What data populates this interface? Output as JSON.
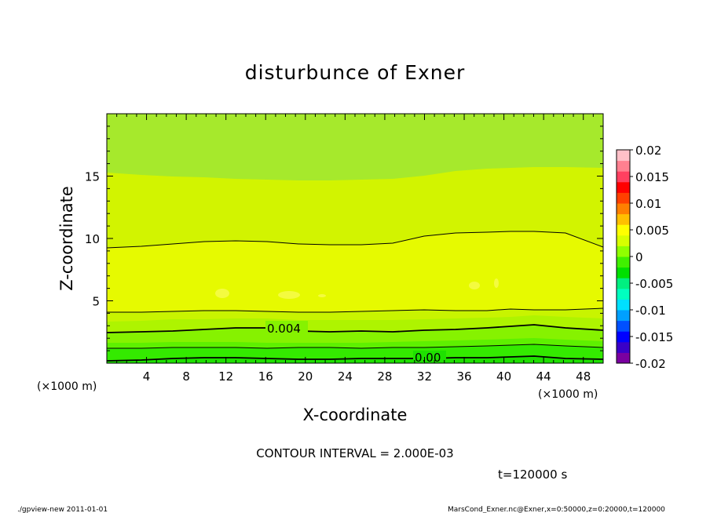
{
  "chart_data": {
    "type": "contour",
    "title": "disturbunce of Exner",
    "xlabel": "X-coordinate",
    "ylabel": "Z-coordinate",
    "x_unit": "(×1000 m)",
    "x_unit_right": "(×1000 m)",
    "xlim": [
      0,
      50
    ],
    "ylim": [
      0,
      20
    ],
    "x_ticks": [
      4,
      8,
      12,
      16,
      20,
      24,
      28,
      32,
      36,
      40,
      44,
      48
    ],
    "y_ticks": [
      5,
      10,
      15
    ],
    "contour_interval_text": "CONTOUR INTERVAL = 2.000E-03",
    "time_text": "t=120000  s",
    "contour_labels": [
      {
        "text": "0.004",
        "x": 18.5,
        "z": 2.7
      },
      {
        "text": "0.00",
        "x": 32.5,
        "z": 0.35
      }
    ],
    "colorbar": {
      "ticks": [
        "0.02",
        "0.015",
        "0.01",
        "0.005",
        "0",
        "-0.005",
        "-0.01",
        "-0.015",
        "-0.02"
      ],
      "range": [
        -0.02,
        0.02
      ],
      "colors": [
        "#7a00a0",
        "#3a00c8",
        "#0000ff",
        "#0050ff",
        "#00a0ff",
        "#00e0ff",
        "#00ffc0",
        "#00f080",
        "#00e000",
        "#40f000",
        "#90ff00",
        "#d8ff00",
        "#ffff00",
        "#ffc000",
        "#ff8000",
        "#ff4000",
        "#ff0000",
        "#ff4060",
        "#ff8090",
        "#ffc0c8"
      ]
    },
    "bands_bottom_to_top": [
      {
        "z_top_description": "≈0.5",
        "color": "#1ee000"
      },
      {
        "z_top_description": "≈1.4",
        "color": "#34ea00"
      },
      {
        "z_top_description": "≈2.0",
        "color": "#5ef000"
      },
      {
        "z_top_description": "≈2.8",
        "color": "#86f200"
      },
      {
        "z_top_description": "≈3.6",
        "color": "#aef400"
      },
      {
        "z_top_description": "≈4.4",
        "color": "#c8f400"
      },
      {
        "z_top_description": "≈10",
        "color": "#e6fa00"
      },
      {
        "z_top_description": "≈15.5",
        "color": "#d2f400"
      },
      {
        "z_top_description": "top",
        "color": "#a6e92c"
      }
    ]
  },
  "footer": {
    "left": "./gpview-new   2011-01-01",
    "right": "MarsCond_Exner.nc@Exner,x=0:50000,z=0:20000,t=120000"
  }
}
